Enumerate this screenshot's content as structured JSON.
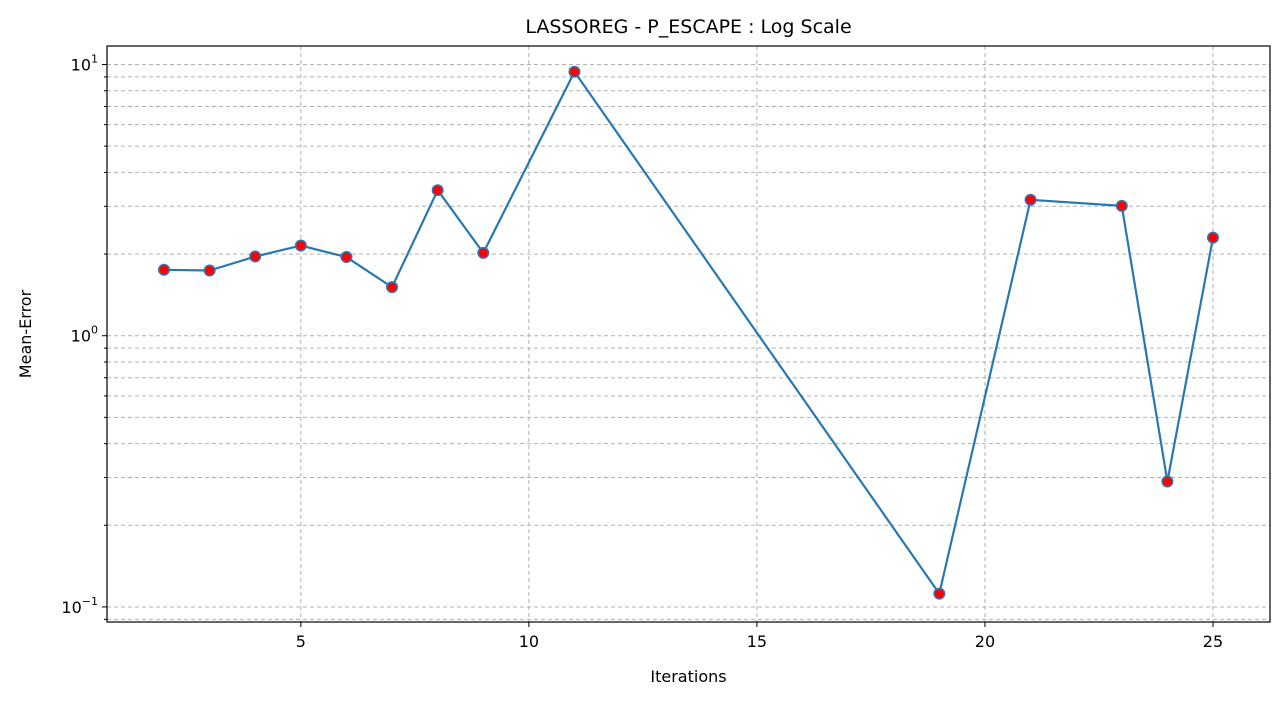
{
  "chart_data": {
    "type": "line",
    "title": "LASSOREG - P_ESCAPE : Log Scale",
    "xlabel": "Iterations",
    "ylabel": "Mean-Error",
    "yscale": "log",
    "xlim": [
      0.75,
      26.25
    ],
    "ylim": [
      0.088,
      11.7
    ],
    "x_ticks": [
      5,
      10,
      15,
      20,
      25
    ],
    "y_ticks": [
      {
        "value": 0.1,
        "base": "10",
        "exp": "−1"
      },
      {
        "value": 1,
        "base": "10",
        "exp": "0"
      },
      {
        "value": 10,
        "base": "10",
        "exp": "1"
      }
    ],
    "grid": true,
    "grid_style": "dashed",
    "line_color": "#2878b0",
    "marker_color": "#ff0000",
    "marker_edge_color": "#3b6fae",
    "series": [
      {
        "x": [
          2,
          3,
          4,
          5,
          6,
          7,
          8,
          9,
          11,
          19,
          21,
          23,
          24,
          25
        ],
        "values": [
          1.75,
          1.74,
          1.96,
          2.15,
          1.95,
          1.51,
          3.44,
          2.02,
          9.4,
          0.112,
          3.17,
          3.01,
          0.29,
          2.3
        ]
      }
    ]
  }
}
